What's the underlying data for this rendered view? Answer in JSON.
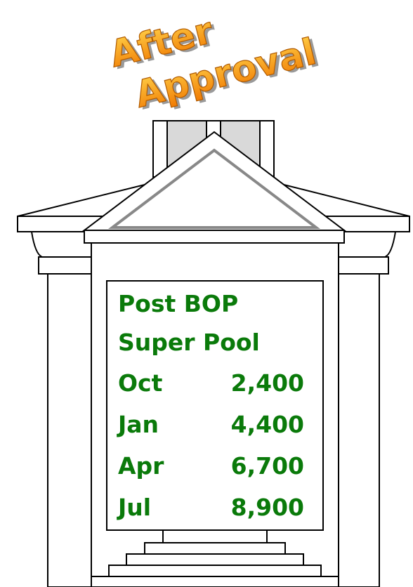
{
  "title_lines": [
    "After",
    "Approval"
  ],
  "panel": {
    "heading": [
      "Post BOP",
      "Super Pool"
    ],
    "rows": [
      [
        "Oct",
        "2,400"
      ],
      [
        "Jan",
        "4,400"
      ],
      [
        "Apr",
        "6,700"
      ],
      [
        "Jul",
        "8,900"
      ]
    ]
  }
}
